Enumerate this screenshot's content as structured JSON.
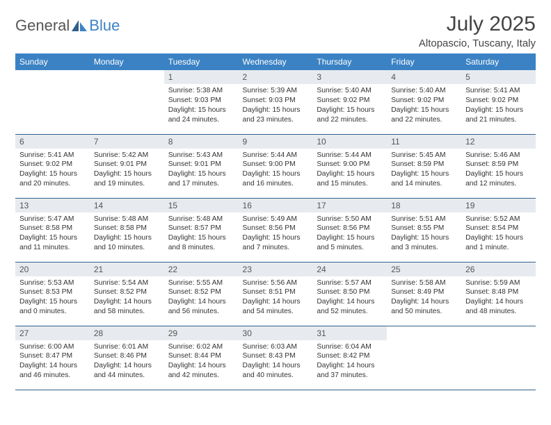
{
  "brand": {
    "word1": "General",
    "word2": "Blue"
  },
  "title": "July 2025",
  "location": "Altopascio, Tuscany, Italy",
  "colors": {
    "header_bg": "#3b82c4",
    "header_text": "#ffffff",
    "daynum_bg": "#e7ebef",
    "row_border": "#2f5f8a",
    "body_text": "#333333",
    "brand_gray": "#555555",
    "brand_blue": "#3b82c4",
    "page_bg": "#ffffff"
  },
  "typography": {
    "title_size_pt": 22,
    "location_size_pt": 11,
    "header_size_pt": 9,
    "daynum_size_pt": 9,
    "body_size_pt": 8
  },
  "structure": {
    "type": "calendar",
    "columns": 7,
    "rows": 5
  },
  "day_headers": [
    "Sunday",
    "Monday",
    "Tuesday",
    "Wednesday",
    "Thursday",
    "Friday",
    "Saturday"
  ],
  "weeks": [
    [
      {
        "empty": true
      },
      {
        "empty": true
      },
      {
        "n": "1",
        "sr": "Sunrise: 5:38 AM",
        "ss": "Sunset: 9:03 PM",
        "dl1": "Daylight: 15 hours",
        "dl2": "and 24 minutes."
      },
      {
        "n": "2",
        "sr": "Sunrise: 5:39 AM",
        "ss": "Sunset: 9:03 PM",
        "dl1": "Daylight: 15 hours",
        "dl2": "and 23 minutes."
      },
      {
        "n": "3",
        "sr": "Sunrise: 5:40 AM",
        "ss": "Sunset: 9:02 PM",
        "dl1": "Daylight: 15 hours",
        "dl2": "and 22 minutes."
      },
      {
        "n": "4",
        "sr": "Sunrise: 5:40 AM",
        "ss": "Sunset: 9:02 PM",
        "dl1": "Daylight: 15 hours",
        "dl2": "and 22 minutes."
      },
      {
        "n": "5",
        "sr": "Sunrise: 5:41 AM",
        "ss": "Sunset: 9:02 PM",
        "dl1": "Daylight: 15 hours",
        "dl2": "and 21 minutes."
      }
    ],
    [
      {
        "n": "6",
        "sr": "Sunrise: 5:41 AM",
        "ss": "Sunset: 9:02 PM",
        "dl1": "Daylight: 15 hours",
        "dl2": "and 20 minutes."
      },
      {
        "n": "7",
        "sr": "Sunrise: 5:42 AM",
        "ss": "Sunset: 9:01 PM",
        "dl1": "Daylight: 15 hours",
        "dl2": "and 19 minutes."
      },
      {
        "n": "8",
        "sr": "Sunrise: 5:43 AM",
        "ss": "Sunset: 9:01 PM",
        "dl1": "Daylight: 15 hours",
        "dl2": "and 17 minutes."
      },
      {
        "n": "9",
        "sr": "Sunrise: 5:44 AM",
        "ss": "Sunset: 9:00 PM",
        "dl1": "Daylight: 15 hours",
        "dl2": "and 16 minutes."
      },
      {
        "n": "10",
        "sr": "Sunrise: 5:44 AM",
        "ss": "Sunset: 9:00 PM",
        "dl1": "Daylight: 15 hours",
        "dl2": "and 15 minutes."
      },
      {
        "n": "11",
        "sr": "Sunrise: 5:45 AM",
        "ss": "Sunset: 8:59 PM",
        "dl1": "Daylight: 15 hours",
        "dl2": "and 14 minutes."
      },
      {
        "n": "12",
        "sr": "Sunrise: 5:46 AM",
        "ss": "Sunset: 8:59 PM",
        "dl1": "Daylight: 15 hours",
        "dl2": "and 12 minutes."
      }
    ],
    [
      {
        "n": "13",
        "sr": "Sunrise: 5:47 AM",
        "ss": "Sunset: 8:58 PM",
        "dl1": "Daylight: 15 hours",
        "dl2": "and 11 minutes."
      },
      {
        "n": "14",
        "sr": "Sunrise: 5:48 AM",
        "ss": "Sunset: 8:58 PM",
        "dl1": "Daylight: 15 hours",
        "dl2": "and 10 minutes."
      },
      {
        "n": "15",
        "sr": "Sunrise: 5:48 AM",
        "ss": "Sunset: 8:57 PM",
        "dl1": "Daylight: 15 hours",
        "dl2": "and 8 minutes."
      },
      {
        "n": "16",
        "sr": "Sunrise: 5:49 AM",
        "ss": "Sunset: 8:56 PM",
        "dl1": "Daylight: 15 hours",
        "dl2": "and 7 minutes."
      },
      {
        "n": "17",
        "sr": "Sunrise: 5:50 AM",
        "ss": "Sunset: 8:56 PM",
        "dl1": "Daylight: 15 hours",
        "dl2": "and 5 minutes."
      },
      {
        "n": "18",
        "sr": "Sunrise: 5:51 AM",
        "ss": "Sunset: 8:55 PM",
        "dl1": "Daylight: 15 hours",
        "dl2": "and 3 minutes."
      },
      {
        "n": "19",
        "sr": "Sunrise: 5:52 AM",
        "ss": "Sunset: 8:54 PM",
        "dl1": "Daylight: 15 hours",
        "dl2": "and 1 minute."
      }
    ],
    [
      {
        "n": "20",
        "sr": "Sunrise: 5:53 AM",
        "ss": "Sunset: 8:53 PM",
        "dl1": "Daylight: 15 hours",
        "dl2": "and 0 minutes."
      },
      {
        "n": "21",
        "sr": "Sunrise: 5:54 AM",
        "ss": "Sunset: 8:52 PM",
        "dl1": "Daylight: 14 hours",
        "dl2": "and 58 minutes."
      },
      {
        "n": "22",
        "sr": "Sunrise: 5:55 AM",
        "ss": "Sunset: 8:52 PM",
        "dl1": "Daylight: 14 hours",
        "dl2": "and 56 minutes."
      },
      {
        "n": "23",
        "sr": "Sunrise: 5:56 AM",
        "ss": "Sunset: 8:51 PM",
        "dl1": "Daylight: 14 hours",
        "dl2": "and 54 minutes."
      },
      {
        "n": "24",
        "sr": "Sunrise: 5:57 AM",
        "ss": "Sunset: 8:50 PM",
        "dl1": "Daylight: 14 hours",
        "dl2": "and 52 minutes."
      },
      {
        "n": "25",
        "sr": "Sunrise: 5:58 AM",
        "ss": "Sunset: 8:49 PM",
        "dl1": "Daylight: 14 hours",
        "dl2": "and 50 minutes."
      },
      {
        "n": "26",
        "sr": "Sunrise: 5:59 AM",
        "ss": "Sunset: 8:48 PM",
        "dl1": "Daylight: 14 hours",
        "dl2": "and 48 minutes."
      }
    ],
    [
      {
        "n": "27",
        "sr": "Sunrise: 6:00 AM",
        "ss": "Sunset: 8:47 PM",
        "dl1": "Daylight: 14 hours",
        "dl2": "and 46 minutes."
      },
      {
        "n": "28",
        "sr": "Sunrise: 6:01 AM",
        "ss": "Sunset: 8:46 PM",
        "dl1": "Daylight: 14 hours",
        "dl2": "and 44 minutes."
      },
      {
        "n": "29",
        "sr": "Sunrise: 6:02 AM",
        "ss": "Sunset: 8:44 PM",
        "dl1": "Daylight: 14 hours",
        "dl2": "and 42 minutes."
      },
      {
        "n": "30",
        "sr": "Sunrise: 6:03 AM",
        "ss": "Sunset: 8:43 PM",
        "dl1": "Daylight: 14 hours",
        "dl2": "and 40 minutes."
      },
      {
        "n": "31",
        "sr": "Sunrise: 6:04 AM",
        "ss": "Sunset: 8:42 PM",
        "dl1": "Daylight: 14 hours",
        "dl2": "and 37 minutes."
      },
      {
        "empty": true
      },
      {
        "empty": true
      }
    ]
  ]
}
